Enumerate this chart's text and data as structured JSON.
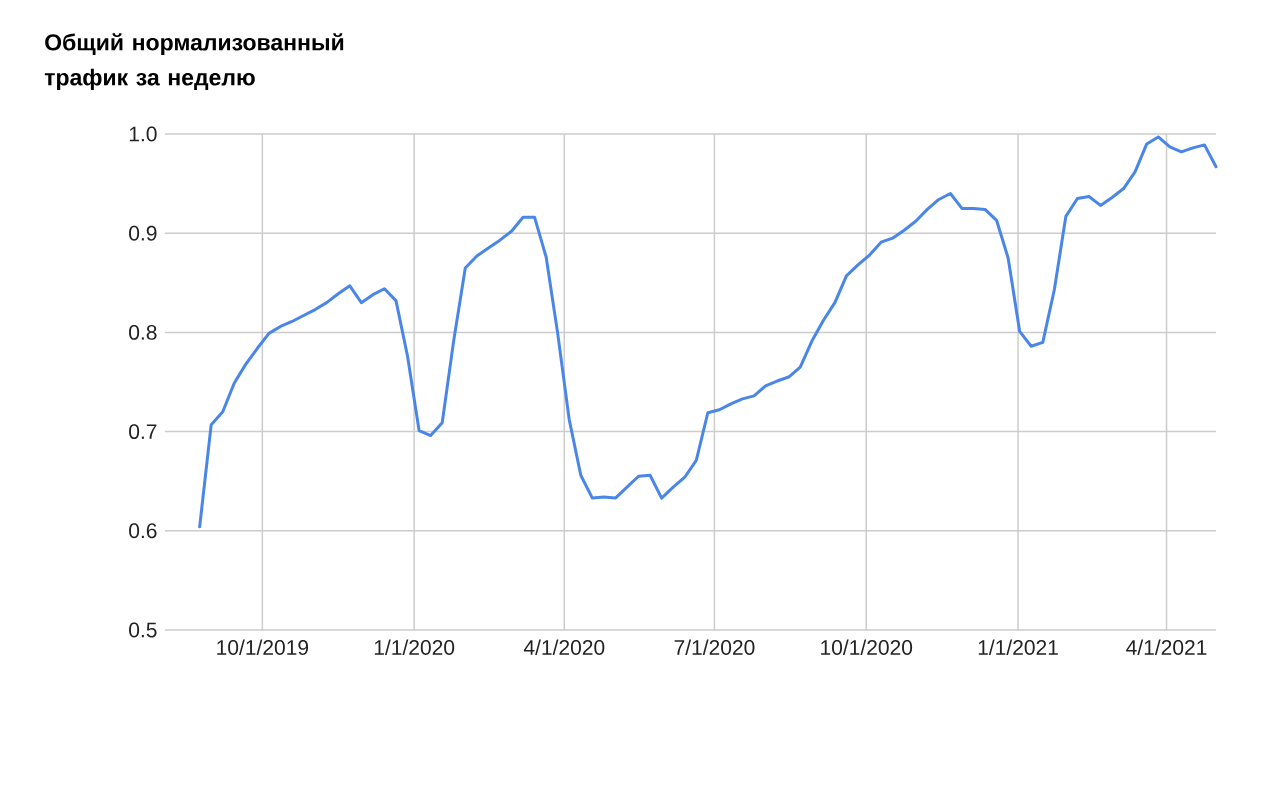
{
  "chart_data": {
    "type": "line",
    "title": "Общий нормализованный трафик за неделю",
    "x": [
      "2019-08-24",
      "2019-08-31",
      "2019-09-07",
      "2019-09-14",
      "2019-09-21",
      "2019-09-28",
      "2019-10-05",
      "2019-10-12",
      "2019-10-19",
      "2019-10-26",
      "2019-11-02",
      "2019-11-09",
      "2019-11-16",
      "2019-11-23",
      "2019-11-30",
      "2019-12-07",
      "2019-12-14",
      "2019-12-21",
      "2019-12-28",
      "2020-01-04",
      "2020-01-11",
      "2020-01-18",
      "2020-01-25",
      "2020-02-01",
      "2020-02-08",
      "2020-02-15",
      "2020-02-22",
      "2020-02-29",
      "2020-03-07",
      "2020-03-14",
      "2020-03-21",
      "2020-03-28",
      "2020-04-04",
      "2020-04-11",
      "2020-04-18",
      "2020-04-25",
      "2020-05-02",
      "2020-05-09",
      "2020-05-16",
      "2020-05-23",
      "2020-05-30",
      "2020-06-06",
      "2020-06-13",
      "2020-06-20",
      "2020-06-27",
      "2020-07-04",
      "2020-07-11",
      "2020-07-18",
      "2020-07-25",
      "2020-08-01",
      "2020-08-08",
      "2020-08-15",
      "2020-08-22",
      "2020-08-29",
      "2020-09-05",
      "2020-09-12",
      "2020-09-19",
      "2020-09-26",
      "2020-10-03",
      "2020-10-10",
      "2020-10-17",
      "2020-10-24",
      "2020-10-31",
      "2020-11-07",
      "2020-11-14",
      "2020-11-21",
      "2020-11-28",
      "2020-12-05",
      "2020-12-12",
      "2020-12-19",
      "2020-12-26",
      "2021-01-02",
      "2021-01-09",
      "2021-01-16",
      "2021-01-23",
      "2021-01-30",
      "2021-02-06",
      "2021-02-13",
      "2021-02-20",
      "2021-02-27",
      "2021-03-06",
      "2021-03-13",
      "2021-03-20",
      "2021-03-27",
      "2021-04-03",
      "2021-04-10",
      "2021-04-17",
      "2021-04-24",
      "2021-05-01"
    ],
    "series": [
      {
        "color": "#4a86e8",
        "values": [
          0.604,
          0.707,
          0.72,
          0.749,
          0.768,
          0.784,
          0.799,
          0.806,
          0.811,
          0.817,
          0.823,
          0.83,
          0.839,
          0.847,
          0.83,
          0.838,
          0.844,
          0.832,
          0.776,
          0.701,
          0.696,
          0.709,
          0.792,
          0.865,
          0.877,
          0.885,
          0.893,
          0.902,
          0.916,
          0.916,
          0.876,
          0.799,
          0.712,
          0.656,
          0.633,
          0.634,
          0.633,
          0.644,
          0.655,
          0.656,
          0.633,
          0.644,
          0.654,
          0.671,
          0.719,
          0.722,
          0.728,
          0.733,
          0.736,
          0.746,
          0.751,
          0.755,
          0.765,
          0.791,
          0.812,
          0.83,
          0.857,
          0.868,
          0.878,
          0.891,
          0.895,
          0.903,
          0.912,
          0.924,
          0.934,
          0.94,
          0.925,
          0.925,
          0.924,
          0.913,
          0.875,
          0.801,
          0.786,
          0.79,
          0.843,
          0.917,
          0.935,
          0.937,
          0.928,
          0.936,
          0.945,
          0.962,
          0.99,
          0.997,
          0.987,
          0.982,
          0.986,
          0.989,
          0.967
        ]
      }
    ],
    "xlim": [
      "2019-08-03",
      "2021-05-01"
    ],
    "ylim": [
      0.5,
      1.0
    ],
    "xticks": [
      {
        "value": "2019-10-01",
        "label": "10/1/2019"
      },
      {
        "value": "2020-01-01",
        "label": "1/1/2020"
      },
      {
        "value": "2020-04-01",
        "label": "4/1/2020"
      },
      {
        "value": "2020-07-01",
        "label": "7/1/2020"
      },
      {
        "value": "2020-10-01",
        "label": "10/1/2020"
      },
      {
        "value": "2021-01-01",
        "label": "1/1/2021"
      },
      {
        "value": "2021-04-01",
        "label": "4/1/2021"
      }
    ],
    "yticks": [
      0.5,
      0.6,
      0.7,
      0.8,
      0.9,
      {
        "value": 1.0,
        "label": "1.0"
      }
    ],
    "grid": true
  }
}
